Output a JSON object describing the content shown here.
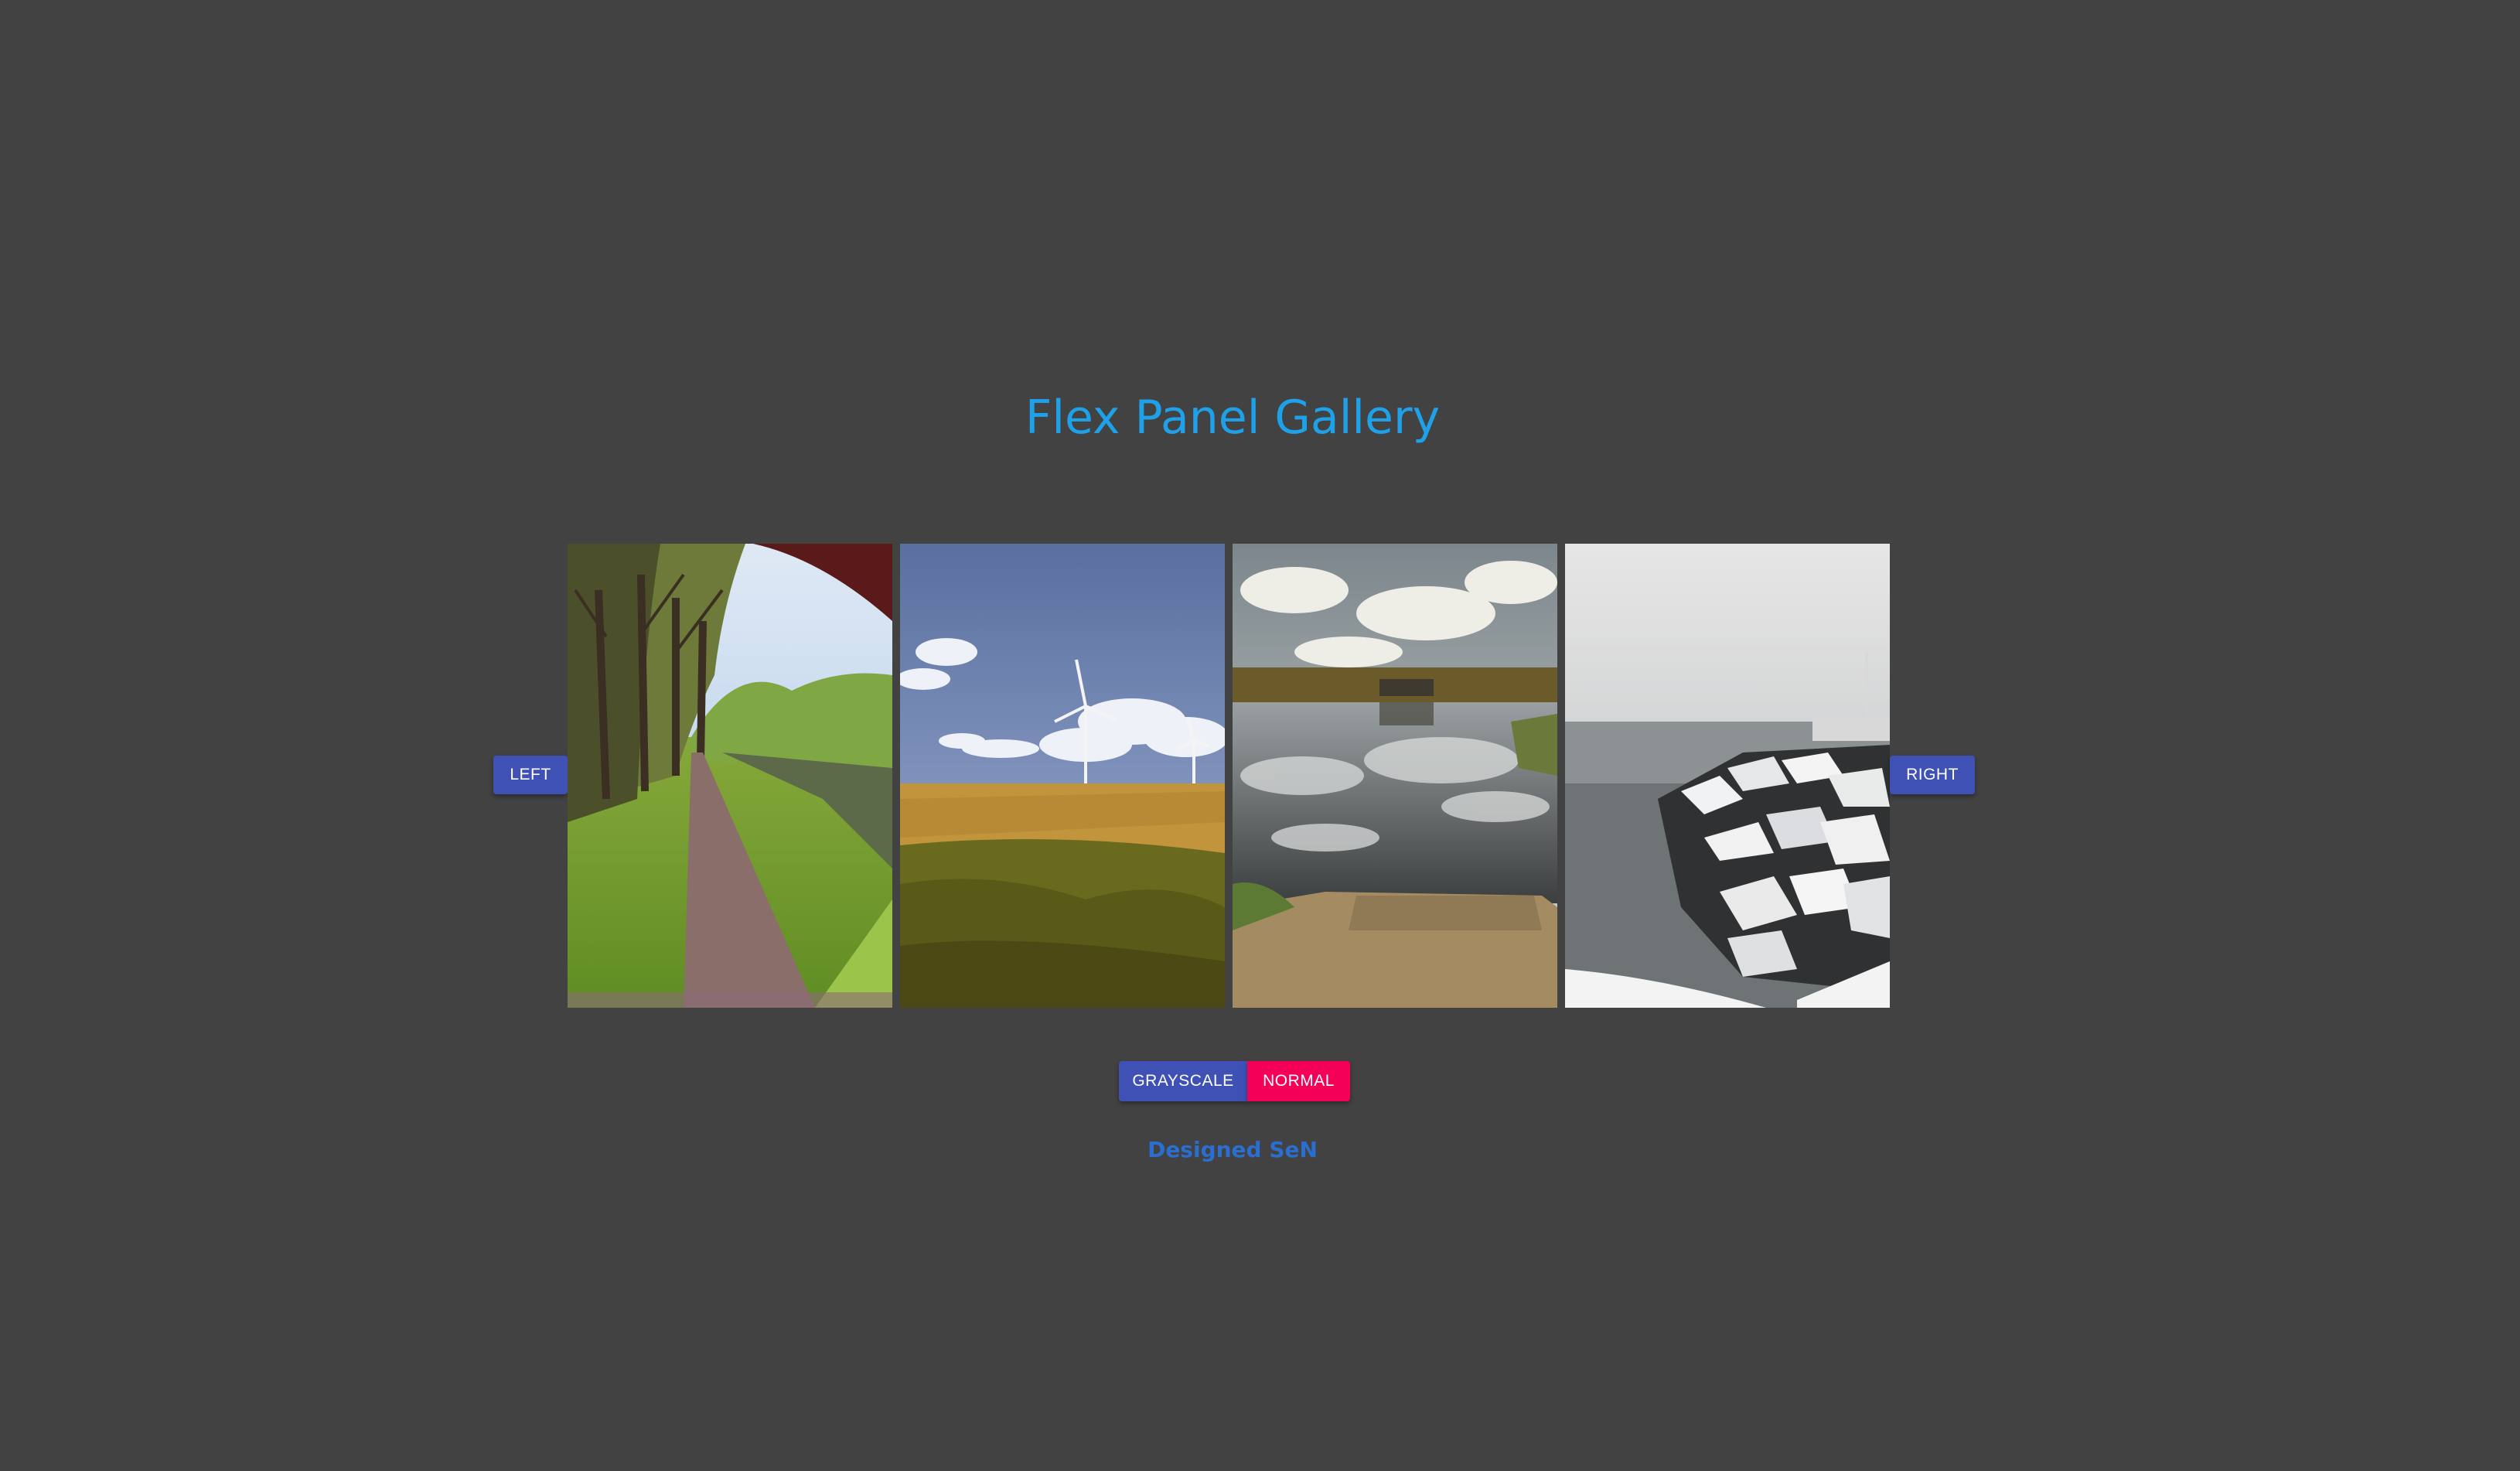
{
  "header": {
    "title": "Flex Panel Gallery"
  },
  "nav": {
    "left_label": "LEFT",
    "right_label": "RIGHT"
  },
  "filters": {
    "grayscale_label": "GRAYSCALE",
    "normal_label": "NORMAL",
    "normal_color": "#f50057",
    "grayscale_color": "#3f51b5"
  },
  "footer": {
    "credit": "Designed SeN"
  },
  "gallery": {
    "panels": [
      {
        "subject": "tree-lined-path-by-canal"
      },
      {
        "subject": "wheat-field-with-wind-turbines"
      },
      {
        "subject": "lake-with-cloud-reflection-and-pier"
      },
      {
        "subject": "snow-covered-rocks-by-sea"
      }
    ]
  }
}
